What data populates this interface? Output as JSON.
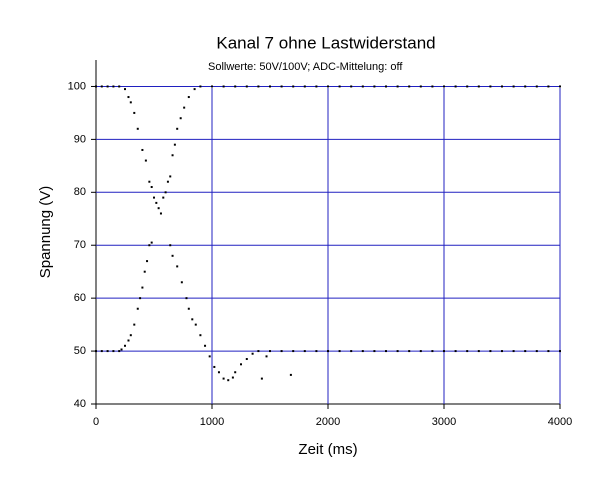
{
  "chart_data": {
    "type": "scatter",
    "title": "Kanal 7 ohne Lastwiderstand",
    "subtitle": "Sollwerte: 50V/100V; ADC-Mittelung: off",
    "x_label": "Zeit (ms)",
    "y_label": "Spannung (V)",
    "color": "#000000",
    "grid": true,
    "grid_color": "#2020c0",
    "xlim": [
      0,
      4000
    ],
    "xticks": [
      0,
      1000,
      2000,
      3000,
      4000
    ],
    "ylim": [
      40,
      105
    ],
    "yticks": [
      40,
      50,
      60,
      70,
      80,
      90,
      100
    ],
    "x": [
      0,
      50,
      100,
      150,
      200,
      250,
      280,
      300,
      330,
      360,
      400,
      430,
      460,
      480,
      500,
      520,
      540,
      560,
      580,
      600,
      620,
      640,
      660,
      680,
      700,
      730,
      760,
      800,
      850,
      900,
      1000,
      1100,
      1200,
      1300,
      1400,
      1500,
      1600,
      1700,
      1800,
      1900,
      2000,
      2100,
      2200,
      2300,
      2400,
      2500,
      2600,
      2700,
      2800,
      2900,
      3000,
      3100,
      3200,
      3300,
      3400,
      3500,
      3600,
      3700,
      3800,
      3900,
      4000,
      0,
      50,
      100,
      150,
      200,
      220,
      250,
      280,
      300,
      330,
      360,
      380,
      400,
      420,
      440,
      460,
      480,
      640,
      660,
      700,
      740,
      780,
      800,
      830,
      860,
      900,
      940,
      980,
      1020,
      1060,
      1100,
      1140,
      1180,
      1200,
      1250,
      1300,
      1350,
      1430,
      1470,
      1680,
      1400,
      1500,
      1600,
      1700,
      1800,
      1900,
      2000,
      2100,
      2200,
      2300,
      2400,
      2500,
      2600,
      2700,
      2800,
      2900,
      3000,
      3100,
      3200,
      3300,
      3400,
      3500,
      3600,
      3700,
      3800,
      3900,
      4000
    ],
    "values": [
      100,
      100,
      100,
      100,
      100,
      99.5,
      98,
      97,
      95,
      92,
      88,
      86,
      82,
      81,
      79,
      78,
      77,
      76,
      79,
      80,
      82,
      83,
      87,
      89,
      92,
      94,
      96,
      98,
      99.5,
      100,
      100,
      100,
      100,
      100,
      100,
      100,
      100,
      100,
      100,
      100,
      100,
      100,
      100,
      100,
      100,
      100,
      100,
      100,
      100,
      100,
      100,
      100,
      100,
      100,
      100,
      100,
      100,
      100,
      100,
      100,
      100,
      50,
      50,
      50,
      50,
      50,
      50.3,
      51,
      52,
      53,
      55,
      58,
      60,
      62,
      65,
      67,
      70,
      70.5,
      70,
      68,
      66,
      63,
      60,
      58,
      56,
      55,
      53,
      51,
      49,
      47,
      46,
      44.8,
      44.5,
      45,
      46,
      47.5,
      48.5,
      49.5,
      44.8,
      49,
      45.5,
      50,
      50,
      50,
      50,
      50,
      50,
      50,
      50,
      50,
      50,
      50,
      50,
      50,
      50,
      50,
      50,
      50,
      50,
      50,
      50,
      50,
      50,
      50,
      50,
      50,
      50,
      50
    ]
  }
}
